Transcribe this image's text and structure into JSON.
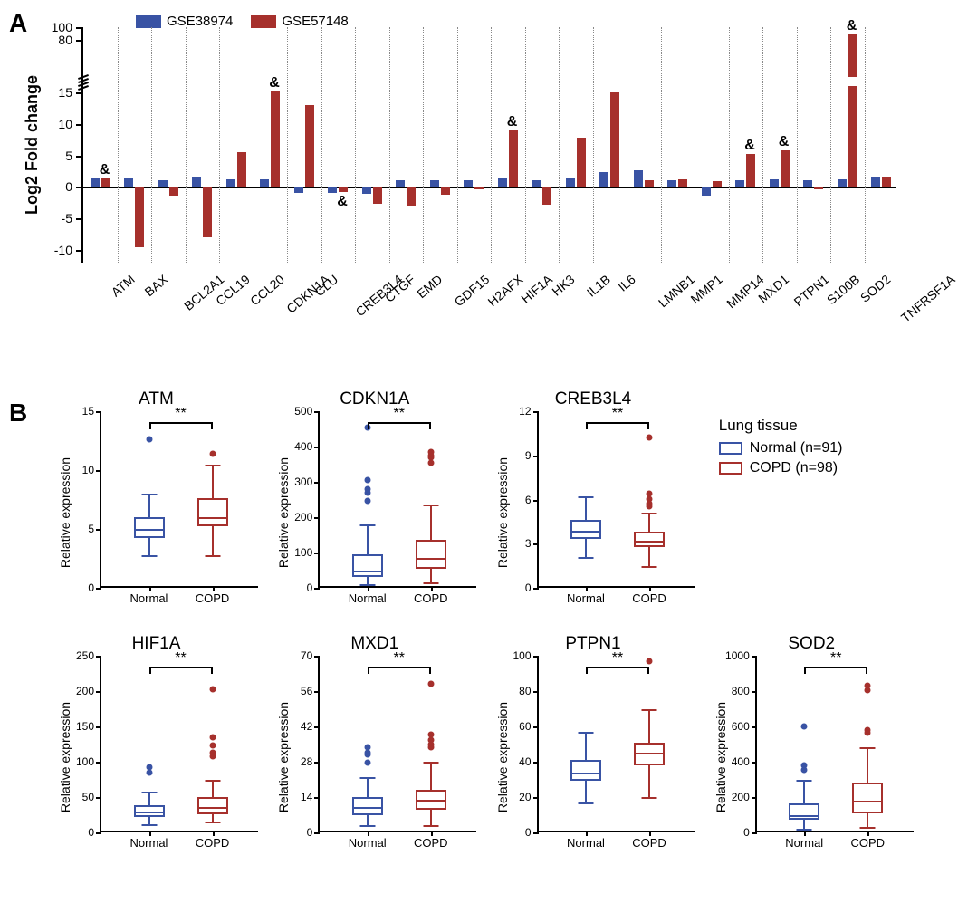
{
  "colors": {
    "blue": "#3953a4",
    "red": "#a6302c",
    "black": "#000000"
  },
  "panelA": {
    "label": "A",
    "ylabel": "Log2 Fold change",
    "legend": [
      {
        "label": "GSE38974",
        "color": "#3953a4"
      },
      {
        "label": "GSE57148",
        "color": "#a6302c"
      }
    ],
    "upper_range": [
      20,
      100
    ],
    "upper_ticks": [
      80,
      100
    ],
    "lower_range": [
      -12,
      16
    ],
    "lower_ticks": [
      -10,
      -5,
      0,
      5,
      10,
      15
    ],
    "amp_symbol": "&",
    "genes": [
      {
        "name": "ATM",
        "blue": 1.3,
        "red": 1.3,
        "amp": true
      },
      {
        "name": "BAX",
        "blue": 1.3,
        "red": -9.5
      },
      {
        "name": "BCL2A1",
        "blue": 1.1,
        "red": -1.4
      },
      {
        "name": "CCL19",
        "blue": 1.6,
        "red": -8.0
      },
      {
        "name": "CCL20",
        "blue": 1.2,
        "red": 5.5
      },
      {
        "name": "CDKN1A",
        "blue": 1.2,
        "red": 15.2,
        "amp": true
      },
      {
        "name": "CLU",
        "blue": -0.9,
        "red": 13.0
      },
      {
        "name": "CREB3L4",
        "blue": -0.9,
        "red": -0.8,
        "amp": true,
        "amp_below": true
      },
      {
        "name": "CTGF",
        "blue": -1.1,
        "red": -2.6
      },
      {
        "name": "EMD",
        "blue": 1.0,
        "red": -2.9
      },
      {
        "name": "GDF15",
        "blue": 1.0,
        "red": -1.3
      },
      {
        "name": "H2AFX",
        "blue": 1.0,
        "red": -0.4
      },
      {
        "name": "HIF1A",
        "blue": 1.3,
        "red": 9.0,
        "amp": true
      },
      {
        "name": "HK3",
        "blue": 1.1,
        "red": -2.8
      },
      {
        "name": "IL1B",
        "blue": 1.3,
        "red": 7.8
      },
      {
        "name": "IL6",
        "blue": 2.3,
        "red": 15.0
      },
      {
        "name": "LMNB1",
        "blue": 2.7,
        "red": 1.0
      },
      {
        "name": "MMP1",
        "blue": 1.1,
        "red": 1.2
      },
      {
        "name": "MMP14",
        "blue": -1.4,
        "red": 0.9
      },
      {
        "name": "MXD1",
        "blue": 1.1,
        "red": 5.2,
        "amp": true
      },
      {
        "name": "PTPN1",
        "blue": 1.2,
        "red": 5.8,
        "amp": true
      },
      {
        "name": "S100B",
        "blue": 1.0,
        "red": -0.4
      },
      {
        "name": "SOD2",
        "blue": 1.2,
        "red": 88,
        "amp": true,
        "upper": true
      },
      {
        "name": "TNFRSF1A",
        "blue": 1.6,
        "red": 1.7
      }
    ]
  },
  "panelB": {
    "label": "B",
    "ylabel": "Relative expression",
    "xlabels": [
      "Normal",
      "COPD"
    ],
    "legend": {
      "title": "Lung tissue",
      "items": [
        {
          "label": "Normal (n=91)",
          "color": "#3953a4"
        },
        {
          "label": "COPD  (n=98)",
          "color": "#a6302c"
        }
      ]
    },
    "sig": "**",
    "plots": [
      {
        "title": "ATM",
        "ymin": 0,
        "ymax": 15,
        "yticks": [
          0,
          5,
          10,
          15
        ],
        "normal": {
          "q1": 4.2,
          "median": 5.0,
          "q3": 6.0,
          "wlo": 2.8,
          "whi": 8.0,
          "outliers": [
            12.5
          ]
        },
        "copd": {
          "q1": 5.2,
          "median": 6.0,
          "q3": 7.6,
          "wlo": 2.8,
          "whi": 10.5,
          "outliers": [
            11.2
          ]
        }
      },
      {
        "title": "CDKN1A",
        "ymin": 0,
        "ymax": 500,
        "yticks": [
          0,
          100,
          200,
          300,
          400,
          500
        ],
        "normal": {
          "q1": 30,
          "median": 50,
          "q3": 95,
          "wlo": 10,
          "whi": 180,
          "outliers": [
            240,
            265,
            275,
            300,
            450
          ]
        },
        "copd": {
          "q1": 55,
          "median": 85,
          "q3": 135,
          "wlo": 15,
          "whi": 235,
          "outliers": [
            350,
            365,
            370,
            380
          ]
        }
      },
      {
        "title": "CREB3L4",
        "ymin": 0,
        "ymax": 12,
        "yticks": [
          0,
          3,
          6,
          9,
          12
        ],
        "normal": {
          "q1": 3.3,
          "median": 3.9,
          "q3": 4.6,
          "wlo": 2.1,
          "whi": 6.2,
          "outliers": []
        },
        "copd": {
          "q1": 2.8,
          "median": 3.2,
          "q3": 3.8,
          "wlo": 1.5,
          "whi": 5.1,
          "outliers": [
            5.4,
            5.6,
            5.9,
            6.3,
            10.1
          ]
        }
      },
      {
        "title": "HIF1A",
        "ymin": 0,
        "ymax": 250,
        "yticks": [
          0,
          50,
          100,
          150,
          200,
          250
        ],
        "normal": {
          "q1": 22,
          "median": 30,
          "q3": 38,
          "wlo": 11,
          "whi": 58,
          "outliers": [
            82,
            90
          ]
        },
        "copd": {
          "q1": 26,
          "median": 36,
          "q3": 50,
          "wlo": 15,
          "whi": 75,
          "outliers": [
            105,
            110,
            120,
            132,
            200
          ]
        }
      },
      {
        "title": "MXD1",
        "ymin": 0,
        "ymax": 70,
        "yticks": [
          0,
          14,
          28,
          42,
          56,
          70
        ],
        "normal": {
          "q1": 7,
          "median": 10,
          "q3": 14,
          "wlo": 3,
          "whi": 22,
          "outliers": [
            27,
            30,
            31,
            33
          ]
        },
        "copd": {
          "q1": 9,
          "median": 13,
          "q3": 17,
          "wlo": 3,
          "whi": 28,
          "outliers": [
            33,
            34,
            36,
            38,
            58
          ]
        }
      },
      {
        "title": "PTPN1",
        "ymin": 0,
        "ymax": 100,
        "yticks": [
          0,
          20,
          40,
          60,
          80,
          100
        ],
        "normal": {
          "q1": 29,
          "median": 34,
          "q3": 41,
          "wlo": 17,
          "whi": 57,
          "outliers": []
        },
        "copd": {
          "q1": 38,
          "median": 45,
          "q3": 51,
          "wlo": 20,
          "whi": 70,
          "outliers": [
            96
          ]
        }
      },
      {
        "title": "SOD2",
        "ymin": 0,
        "ymax": 1000,
        "yticks": [
          0,
          200,
          400,
          600,
          800,
          1000
        ],
        "normal": {
          "q1": 70,
          "median": 100,
          "q3": 165,
          "wlo": 20,
          "whi": 300,
          "outliers": [
            345,
            370,
            590
          ]
        },
        "copd": {
          "q1": 110,
          "median": 180,
          "q3": 280,
          "wlo": 30,
          "whi": 480,
          "outliers": [
            555,
            570,
            795,
            820
          ]
        }
      }
    ]
  }
}
